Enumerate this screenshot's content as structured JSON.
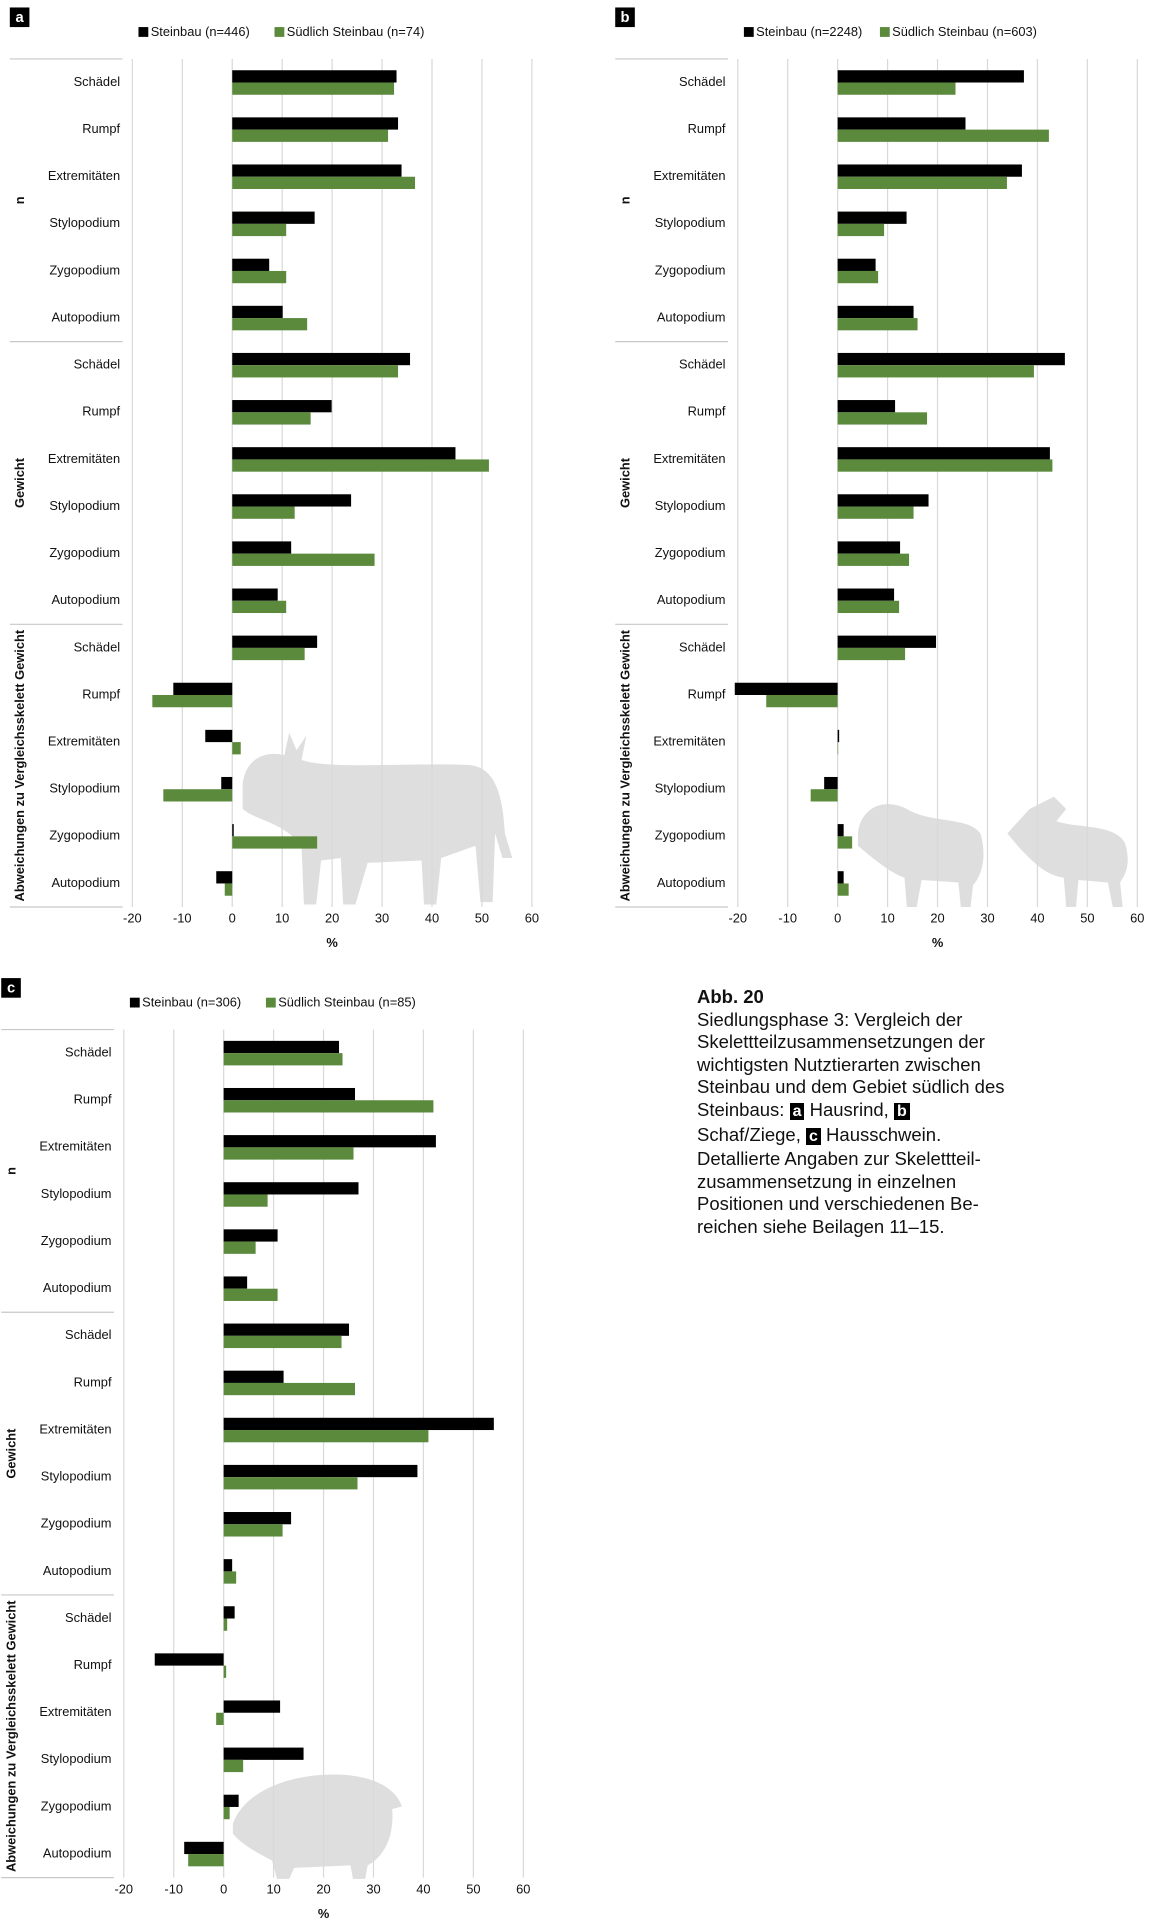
{
  "chart_data": [
    {
      "type": "bar",
      "orientation": "horizontal",
      "panel": "a",
      "categories": [
        "Schädel",
        "Rumpf",
        "Extremitäten",
        "Stylopodium",
        "Zygopodium",
        "Autopodium",
        "Schädel",
        "Rumpf",
        "Extremitäten",
        "Stylopodium",
        "Zygopodium",
        "Autopodium",
        "Schädel",
        "Rumpf",
        "Extremitäten",
        "Stylopodium",
        "Zygopodium",
        "Autopodium"
      ],
      "group_labels": [
        "n",
        "Gewicht",
        "Abweichungen zu Vergleichsskelett Gewicht"
      ],
      "series": [
        {
          "name": "Steinbau (n=446)",
          "color": "#000000",
          "values": [
            32.9,
            33.2,
            33.9,
            16.5,
            7.4,
            10.1,
            35.6,
            19.9,
            44.7,
            23.8,
            11.8,
            9.1,
            17,
            -11.8,
            -5.4,
            -2.2,
            0.3,
            -3.2
          ]
        },
        {
          "name": "Südlich Steinbau (n=74)",
          "color": "#5b8a3c",
          "values": [
            32.4,
            31.2,
            36.6,
            10.8,
            10.8,
            15.0,
            33.2,
            15.7,
            51.4,
            12.5,
            28.5,
            10.8,
            14.5,
            -16,
            1.7,
            -13.8,
            17,
            -1.5
          ]
        }
      ],
      "xlabel": "%",
      "xlim": [
        -20,
        60
      ],
      "xticks": [
        -20,
        -10,
        0,
        10,
        20,
        30,
        40,
        50,
        60
      ],
      "grid": true
    },
    {
      "type": "bar",
      "orientation": "horizontal",
      "panel": "b",
      "categories": [
        "Schädel",
        "Rumpf",
        "Extremitäten",
        "Stylopodium",
        "Zygopodium",
        "Autopodium",
        "Schädel",
        "Rumpf",
        "Extremitäten",
        "Stylopodium",
        "Zygopodium",
        "Autopodium",
        "Schädel",
        "Rumpf",
        "Extremitäten",
        "Stylopodium",
        "Zygopodium",
        "Autopodium"
      ],
      "group_labels": [
        "n",
        "Gewicht",
        "Abweichungen zu Vergleichsskelett Gewicht"
      ],
      "series": [
        {
          "name": "Steinbau (n=2248)",
          "color": "#000000",
          "values": [
            37.3,
            25.6,
            36.9,
            13.8,
            7.6,
            15.2,
            45.5,
            11.5,
            42.5,
            18.2,
            12.5,
            11.3,
            19.7,
            -20.6,
            0.3,
            -2.7,
            1.2,
            1.2
          ]
        },
        {
          "name": "Südlich Steinbau (n=603)",
          "color": "#5b8a3c",
          "values": [
            23.6,
            42.3,
            33.9,
            9.3,
            8.1,
            16.0,
            39.3,
            17.9,
            43.0,
            15.2,
            14.3,
            12.3,
            13.5,
            -14.3,
            0.1,
            -5.4,
            2.9,
            2.2
          ]
        }
      ],
      "xlabel": "%",
      "xlim": [
        -20,
        60
      ],
      "xticks": [
        -20,
        -10,
        0,
        10,
        20,
        30,
        40,
        50,
        60
      ],
      "grid": true
    },
    {
      "type": "bar",
      "orientation": "horizontal",
      "panel": "c",
      "categories": [
        "Schädel",
        "Rumpf",
        "Extremitäten",
        "Stylopodium",
        "Zygopodium",
        "Autopodium",
        "Schädel",
        "Rumpf",
        "Extremitäten",
        "Stylopodium",
        "Zygopodium",
        "Autopodium",
        "Schädel",
        "Rumpf",
        "Extremitäten",
        "Stylopodium",
        "Zygopodium",
        "Autopodium"
      ],
      "group_labels": [
        "n",
        "Gewicht",
        "Abweichungen zu Vergleichsskelett Gewicht"
      ],
      "series": [
        {
          "name": "Steinbau (n=306)",
          "color": "#000000",
          "values": [
            23.1,
            26.3,
            42.5,
            27.0,
            10.8,
            4.7,
            25.1,
            12.0,
            54.1,
            38.8,
            13.5,
            1.7,
            2.2,
            -13.8,
            11.3,
            16.0,
            3.0,
            -7.9
          ]
        },
        {
          "name": "Südlich Steinbau (n=85)",
          "color": "#5b8a3c",
          "values": [
            23.8,
            42.0,
            26.0,
            8.8,
            6.4,
            10.8,
            23.6,
            26.3,
            41.0,
            26.8,
            11.8,
            2.5,
            0.7,
            0.5,
            -1.5,
            3.9,
            1.2,
            -7.1
          ]
        }
      ],
      "xlabel": "%",
      "xlim": [
        -20,
        60
      ],
      "xticks": [
        -20,
        -10,
        0,
        10,
        20,
        30,
        40,
        50,
        60
      ],
      "grid": true
    }
  ],
  "caption": {
    "title": "Abb. 20",
    "segments": [
      {
        "text": "Siedlungsphase 3: Vergleich der Skelettteilzusammensetzungen der wichtigsten Nutztierarten zwischen Steinbau und dem Gebiet südlich des Steinbaus: "
      },
      {
        "badge": "a"
      },
      {
        "text": " Hausrind, "
      },
      {
        "badge": "b"
      },
      {
        "text": " Schaf/Ziege, "
      },
      {
        "badge": "c"
      },
      {
        "text": " Hausschwein. Detallierte Angaben zur Skelettteil­zusammensetzung in einzelnen Positionen und verschiedenen Be­reichen siehe Beilagen 11–15."
      }
    ]
  }
}
